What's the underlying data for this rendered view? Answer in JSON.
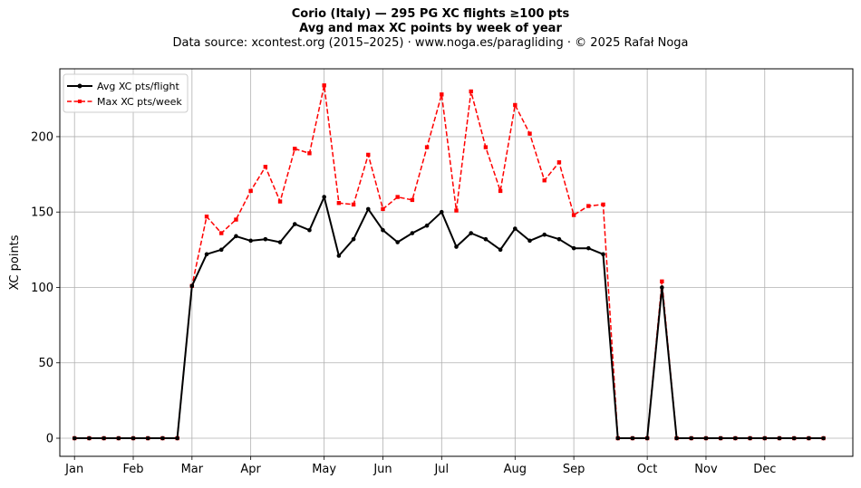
{
  "title_line1": "Corio (Italy)  —  295 PG XC flights ≥100 pts",
  "title_line2": "Avg and max XC points by week of year",
  "title_line3": "Data source: xcontest.org (2015–2025)  ·  www.noga.es/paragliding  ·  © 2025 Rafał Noga",
  "chart_data": {
    "type": "line",
    "title": "Avg and max XC points by week of year",
    "xlabel": "",
    "ylabel": "XC points",
    "grid": true,
    "legend_position": "top-left",
    "xlim": [
      0,
      54
    ],
    "ylim": [
      -12,
      245
    ],
    "x_ticks": [
      {
        "week": 1,
        "label": "Jan"
      },
      {
        "week": 5,
        "label": "Feb"
      },
      {
        "week": 9,
        "label": "Mar"
      },
      {
        "week": 13,
        "label": "Apr"
      },
      {
        "week": 18,
        "label": "May"
      },
      {
        "week": 22,
        "label": "Jun"
      },
      {
        "week": 26,
        "label": "Jul"
      },
      {
        "week": 31,
        "label": "Aug"
      },
      {
        "week": 35,
        "label": "Sep"
      },
      {
        "week": 40,
        "label": "Oct"
      },
      {
        "week": 44,
        "label": "Nov"
      },
      {
        "week": 48,
        "label": "Dec"
      }
    ],
    "y_ticks": [
      0,
      50,
      100,
      150,
      200
    ],
    "weeks": [
      1,
      2,
      3,
      4,
      5,
      6,
      7,
      8,
      9,
      10,
      11,
      12,
      13,
      14,
      15,
      16,
      17,
      18,
      19,
      20,
      21,
      22,
      23,
      24,
      25,
      26,
      27,
      28,
      29,
      30,
      31,
      32,
      33,
      34,
      35,
      36,
      37,
      38,
      39,
      40,
      41,
      42,
      43,
      44,
      45,
      46,
      47,
      48,
      49,
      50,
      51,
      52
    ],
    "series": [
      {
        "name": "Avg XC pts/flight",
        "color": "#000000",
        "style": "solid",
        "marker": "circle",
        "values": [
          0,
          0,
          0,
          0,
          0,
          0,
          0,
          0,
          101,
          122,
          125,
          134,
          131,
          132,
          130,
          142,
          138,
          160,
          121,
          132,
          152,
          138,
          130,
          136,
          141,
          150,
          127,
          136,
          132,
          125,
          139,
          131,
          135,
          132,
          126,
          126,
          122,
          0,
          0,
          0,
          100,
          0,
          0,
          0,
          0,
          0,
          0,
          0,
          0,
          0,
          0,
          0
        ]
      },
      {
        "name": "Max XC pts/week",
        "color": "#ff0000",
        "style": "dashed",
        "marker": "square",
        "values": [
          0,
          0,
          0,
          0,
          0,
          0,
          0,
          0,
          101,
          147,
          136,
          145,
          164,
          180,
          157,
          192,
          189,
          234,
          156,
          155,
          188,
          152,
          160,
          158,
          193,
          228,
          151,
          230,
          193,
          164,
          221,
          202,
          171,
          183,
          148,
          154,
          155,
          0,
          0,
          0,
          104,
          0,
          0,
          0,
          0,
          0,
          0,
          0,
          0,
          0,
          0,
          0
        ]
      }
    ]
  }
}
